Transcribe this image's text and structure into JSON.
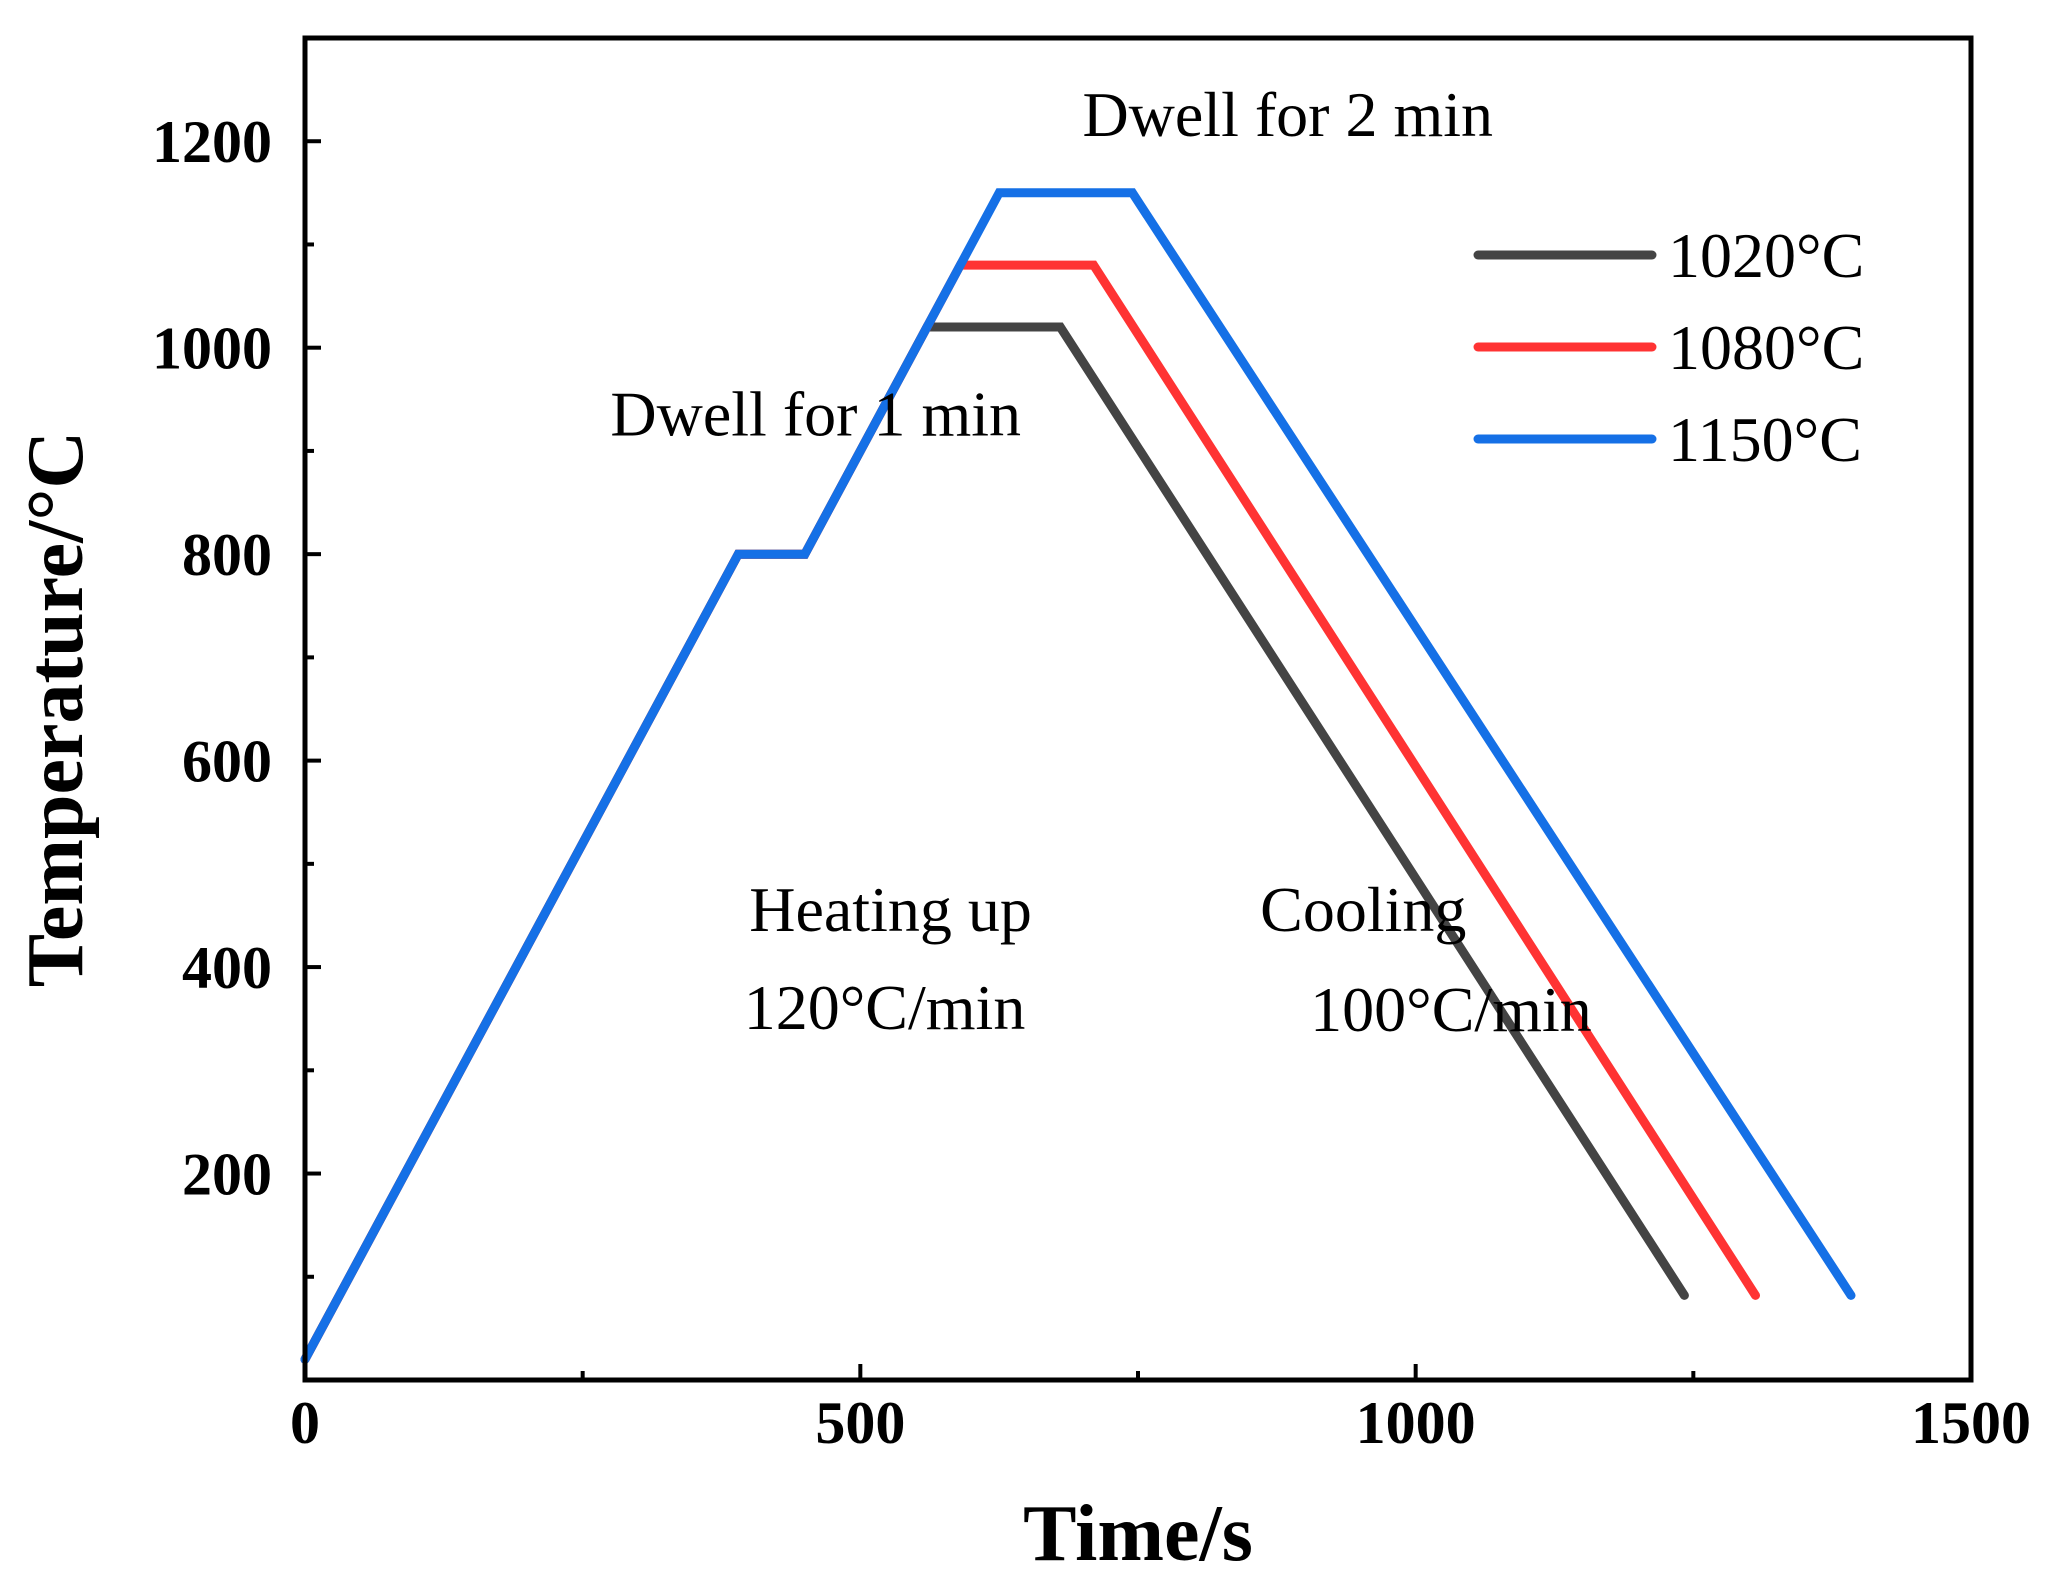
{
  "chart_data": {
    "type": "line",
    "title": "",
    "xlabel": "Time/s",
    "ylabel": "Temperature/°C",
    "xlim": [
      0,
      1500
    ],
    "ylim": [
      0,
      1300
    ],
    "x_ticks": [
      0,
      500,
      1000,
      1500
    ],
    "y_ticks": [
      200,
      400,
      600,
      800,
      1000,
      1200
    ],
    "x_tick_labels": [
      "0",
      "500",
      "1000",
      "1500"
    ],
    "y_tick_labels": [
      "200",
      "400",
      "600",
      "800",
      "1000",
      "1200"
    ],
    "legend_position": "top-right",
    "series": [
      {
        "name": "1020°C",
        "color": "#444444",
        "points": [
          [
            0,
            20
          ],
          [
            390,
            800
          ],
          [
            450,
            800
          ],
          [
            560,
            1020
          ],
          [
            680,
            1020
          ],
          [
            1242,
            82
          ]
        ]
      },
      {
        "name": "1080°C",
        "color": "#ff3333",
        "points": [
          [
            0,
            20
          ],
          [
            390,
            800
          ],
          [
            450,
            800
          ],
          [
            590,
            1080
          ],
          [
            710,
            1080
          ],
          [
            1306,
            82
          ]
        ]
      },
      {
        "name": "1150°C",
        "color": "#1570e6",
        "points": [
          [
            0,
            20
          ],
          [
            390,
            800
          ],
          [
            450,
            800
          ],
          [
            625,
            1150
          ],
          [
            745,
            1150
          ],
          [
            1392,
            82
          ]
        ]
      }
    ],
    "annotations": [
      {
        "text": "Dwell for 2 min",
        "x": 700,
        "y": 1205
      },
      {
        "text": "Dwell for 1 min",
        "x": 275,
        "y": 915
      },
      {
        "text": "Heating up",
        "x": 400,
        "y": 435
      },
      {
        "text": "120°C/min",
        "x": 395,
        "y": 340
      },
      {
        "text": "Cooling",
        "x": 860,
        "y": 435
      },
      {
        "text": "100°C/min",
        "x": 905,
        "y": 338
      }
    ]
  }
}
